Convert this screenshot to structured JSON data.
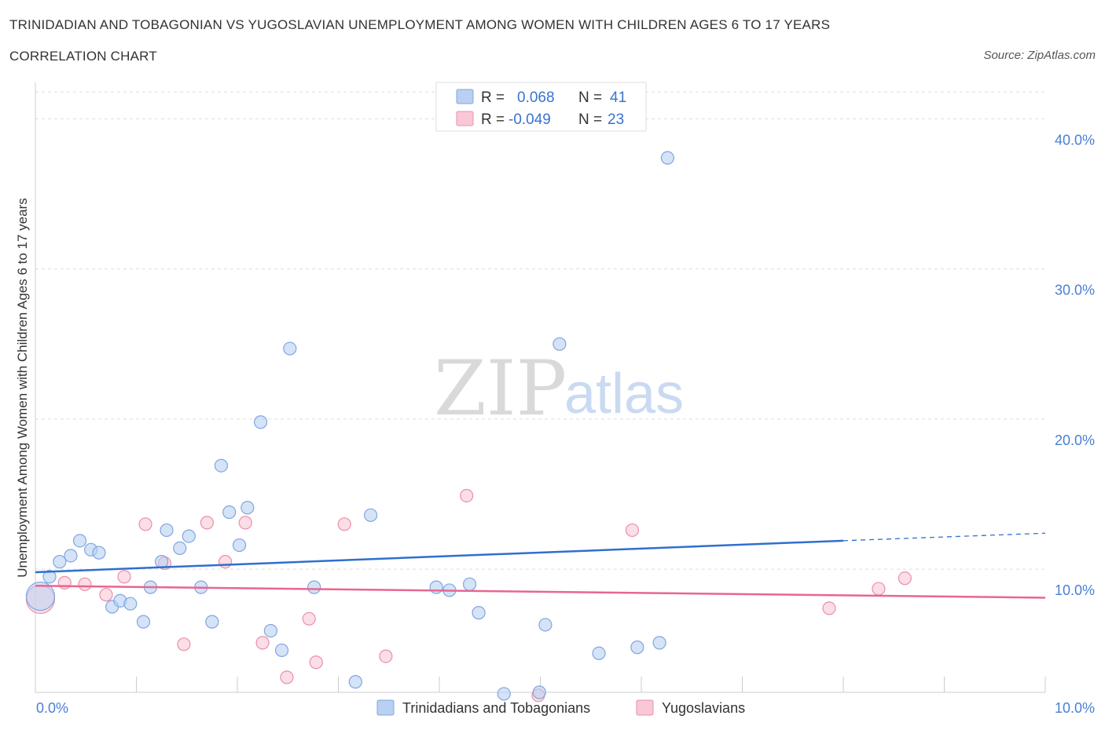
{
  "header": {
    "title": "TRINIDADIAN AND TOBAGONIAN VS YUGOSLAVIAN UNEMPLOYMENT AMONG WOMEN WITH CHILDREN AGES 6 TO 17 YEARS",
    "subtitle": "CORRELATION CHART",
    "source": "Source: ZipAtlas.com"
  },
  "watermark": {
    "zip": "ZIP",
    "atlas": "atlas"
  },
  "legend": {
    "r_label": "R =",
    "n_label": "N =",
    "rows": [
      {
        "r": "0.068",
        "n": "41"
      },
      {
        "r": "-0.049",
        "n": "23"
      }
    ]
  },
  "colors": {
    "blue_fill": "#b9d0f2",
    "blue_stroke": "#7fa6e0",
    "blue_line": "#2f6fcf",
    "pink_fill": "#f8c8d6",
    "pink_stroke": "#ea8faa",
    "pink_line": "#e8668f",
    "axis_text": "#4a7fd4",
    "grid": "#dddddd"
  },
  "chart_data": {
    "type": "scatter",
    "title": "TRINIDADIAN AND TOBAGONIAN VS YUGOSLAVIAN UNEMPLOYMENT AMONG WOMEN WITH CHILDREN AGES 6 TO 17 YEARS",
    "xlabel": "",
    "ylabel": "Unemployment Among Women with Children Ages 6 to 17 years",
    "xlim": [
      0,
      10
    ],
    "ylim": [
      1.8,
      41.8
    ],
    "x_tick_labels": [
      "0.0%",
      "10.0%"
    ],
    "y_ticks": [
      {
        "value": 10,
        "label": "10.0%"
      },
      {
        "value": 20,
        "label": "20.0%"
      },
      {
        "value": 30,
        "label": "30.0%"
      },
      {
        "value": 40,
        "label": "40.0%"
      }
    ],
    "grid": true,
    "legend_position": "top-center",
    "series": [
      {
        "name": "Trinidadians and Tobagonians",
        "color": "#b9d0f2",
        "r": 0.068,
        "n": 41,
        "trend": {
          "x0": 0,
          "y0": 9.8,
          "x1": 8.0,
          "y1": 11.9,
          "dash_to_x": 10,
          "dash_to_y": 12.4
        },
        "points": [
          {
            "x": 0.05,
            "y": 8.2,
            "big": true
          },
          {
            "x": 0.14,
            "y": 9.5
          },
          {
            "x": 0.24,
            "y": 10.5
          },
          {
            "x": 0.35,
            "y": 10.9
          },
          {
            "x": 0.44,
            "y": 11.9
          },
          {
            "x": 0.55,
            "y": 11.3
          },
          {
            "x": 0.63,
            "y": 11.1
          },
          {
            "x": 0.76,
            "y": 7.5
          },
          {
            "x": 0.84,
            "y": 7.9
          },
          {
            "x": 0.94,
            "y": 7.7
          },
          {
            "x": 1.07,
            "y": 6.5
          },
          {
            "x": 1.14,
            "y": 8.8
          },
          {
            "x": 1.25,
            "y": 10.5
          },
          {
            "x": 1.3,
            "y": 12.6
          },
          {
            "x": 1.43,
            "y": 11.4
          },
          {
            "x": 1.52,
            "y": 12.2
          },
          {
            "x": 1.64,
            "y": 8.8
          },
          {
            "x": 1.75,
            "y": 6.5
          },
          {
            "x": 1.84,
            "y": 16.9
          },
          {
            "x": 1.92,
            "y": 13.8
          },
          {
            "x": 2.02,
            "y": 11.6
          },
          {
            "x": 2.1,
            "y": 14.1
          },
          {
            "x": 2.23,
            "y": 19.8
          },
          {
            "x": 2.33,
            "y": 5.9
          },
          {
            "x": 2.44,
            "y": 4.6
          },
          {
            "x": 2.52,
            "y": 24.7
          },
          {
            "x": 2.76,
            "y": 8.8
          },
          {
            "x": 3.17,
            "y": 2.5
          },
          {
            "x": 3.32,
            "y": 13.6
          },
          {
            "x": 3.97,
            "y": 8.8
          },
          {
            "x": 4.1,
            "y": 8.6
          },
          {
            "x": 4.3,
            "y": 9.0
          },
          {
            "x": 4.39,
            "y": 7.1
          },
          {
            "x": 4.64,
            "y": 1.7
          },
          {
            "x": 4.99,
            "y": 1.8
          },
          {
            "x": 5.05,
            "y": 6.3
          },
          {
            "x": 5.19,
            "y": 25.0
          },
          {
            "x": 5.58,
            "y": 4.4
          },
          {
            "x": 5.96,
            "y": 4.8
          },
          {
            "x": 6.18,
            "y": 5.1
          },
          {
            "x": 6.26,
            "y": 37.4
          }
        ]
      },
      {
        "name": "Yugoslavians",
        "color": "#f8c8d6",
        "r": -0.049,
        "n": 23,
        "trend": {
          "x0": 0,
          "y0": 8.9,
          "x1": 10,
          "y1": 8.1
        },
        "points": [
          {
            "x": 0.05,
            "y": 8.0,
            "big": true
          },
          {
            "x": 0.29,
            "y": 9.1
          },
          {
            "x": 0.49,
            "y": 9.0
          },
          {
            "x": 0.7,
            "y": 8.3
          },
          {
            "x": 0.88,
            "y": 9.5
          },
          {
            "x": 1.09,
            "y": 13.0
          },
          {
            "x": 1.28,
            "y": 10.4
          },
          {
            "x": 1.47,
            "y": 5.0
          },
          {
            "x": 1.7,
            "y": 13.1
          },
          {
            "x": 1.88,
            "y": 10.5
          },
          {
            "x": 2.08,
            "y": 13.1
          },
          {
            "x": 2.25,
            "y": 5.1
          },
          {
            "x": 2.49,
            "y": 2.8
          },
          {
            "x": 2.71,
            "y": 6.7
          },
          {
            "x": 2.78,
            "y": 3.8
          },
          {
            "x": 3.06,
            "y": 13.0
          },
          {
            "x": 3.47,
            "y": 4.2
          },
          {
            "x": 4.27,
            "y": 14.9
          },
          {
            "x": 4.98,
            "y": 1.6
          },
          {
            "x": 5.91,
            "y": 12.6
          },
          {
            "x": 7.86,
            "y": 7.4
          },
          {
            "x": 8.35,
            "y": 8.7
          },
          {
            "x": 8.61,
            "y": 9.4
          }
        ]
      }
    ]
  }
}
